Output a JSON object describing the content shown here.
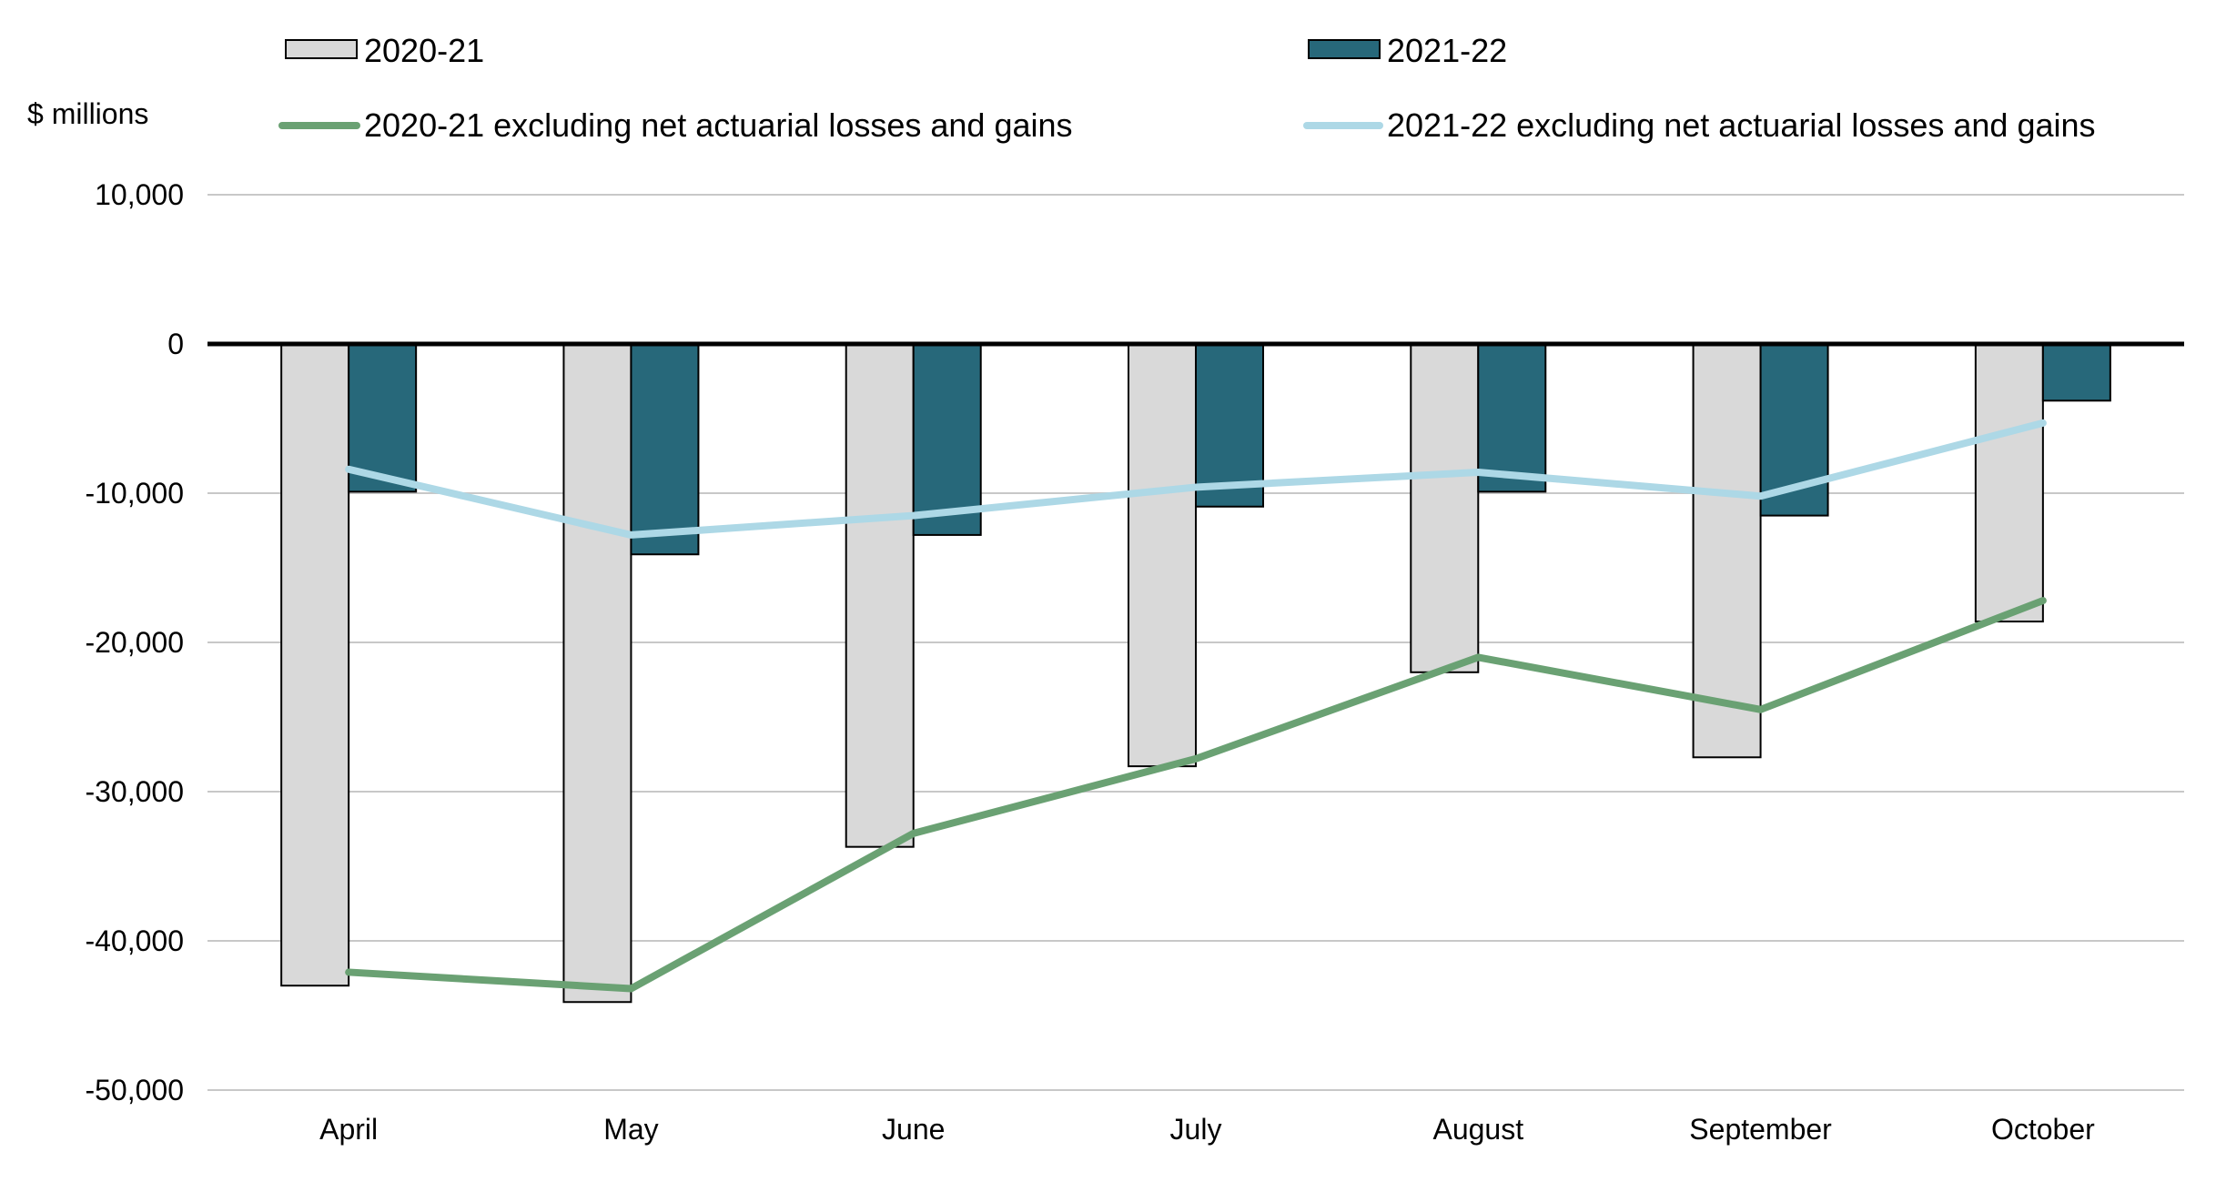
{
  "chart_data": {
    "type": "bar",
    "ylabel": "$ millions",
    "ylim": [
      -50000,
      10000
    ],
    "yticks": [
      10000,
      0,
      -10000,
      -20000,
      -30000,
      -40000,
      -50000
    ],
    "ytick_labels": [
      "10,000",
      "0",
      "-10,000",
      "-20,000",
      "-30,000",
      "-40,000",
      "-50,000"
    ],
    "categories": [
      "April",
      "May",
      "June",
      "July",
      "August",
      "September",
      "October"
    ],
    "grid": true,
    "legend_position": "top",
    "series": [
      {
        "name": "2020-21",
        "kind": "bar",
        "color": "#d9d9d9",
        "values": [
          -43000,
          -44100,
          -33700,
          -28300,
          -22000,
          -27700,
          -18600
        ]
      },
      {
        "name": "2021-22",
        "kind": "bar",
        "color": "#27687a",
        "values": [
          -9900,
          -14100,
          -12800,
          -10900,
          -9900,
          -11500,
          -3800
        ]
      },
      {
        "name": "2020-21 excluding net actuarial losses and gains",
        "kind": "line",
        "color": "#6aa173",
        "values": [
          -42100,
          -43200,
          -32800,
          -27800,
          -21000,
          -24500,
          -17200
        ]
      },
      {
        "name": "2021-22 excluding net actuarial losses and gains",
        "kind": "line",
        "color": "#add8e6",
        "values": [
          -8400,
          -12800,
          -11500,
          -9600,
          -8600,
          -10200,
          -5300
        ]
      }
    ]
  }
}
